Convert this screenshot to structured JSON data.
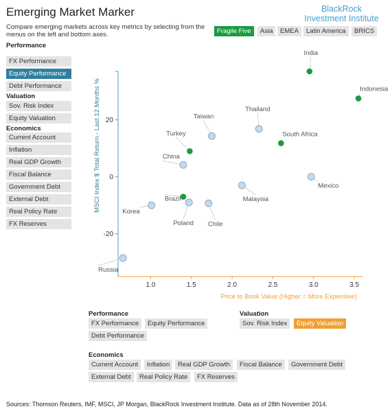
{
  "header": {
    "title": "Emerging Market Marker",
    "subtitle": "Compare emerging markets across key metrics by selecting from the menus on the left and bottom axes.",
    "brand_line1": "BlackRock",
    "brand_line2": "Investment Institute"
  },
  "region_tabs": [
    {
      "label": "Fragile Five",
      "selected": true
    },
    {
      "label": "Asia",
      "selected": false
    },
    {
      "label": "EMEA",
      "selected": false
    },
    {
      "label": "Latin America",
      "selected": false
    },
    {
      "label": "BRICS",
      "selected": false
    }
  ],
  "left_menu": {
    "performance_title": "Performance",
    "performance": [
      "FX Performance",
      "Equity Performance",
      "Debt Performance"
    ],
    "valuation_title": "Valuation",
    "valuation": [
      "Sov. Risk Index",
      "Equity Valuation"
    ],
    "economics_title": "Economics",
    "economics": [
      "Current Account",
      "Inflation",
      "Real GDP Growth",
      "Fiscal Balance",
      "Government Debt",
      "External Debt",
      "Real Policy Rate",
      "FX Reserves"
    ],
    "selected": "Equity Performance"
  },
  "bottom_menu": {
    "performance_title": "Performance",
    "performance": [
      "FX Performance",
      "Equity Performance",
      "Debt Performance"
    ],
    "valuation_title": "Valuation",
    "valuation": [
      "Sov. Risk Index",
      "Equity Valuation"
    ],
    "economics_title": "Economics",
    "economics": [
      "Current Account",
      "Inflation",
      "Real GDP Growth",
      "Fiscal Balance",
      "Government Debt",
      "External Debt",
      "Real Policy Rate",
      "FX Reserves"
    ],
    "selected": "Equity Valuation"
  },
  "chart_data": {
    "type": "scatter",
    "xlabel": "Price to Book Value (Higher = More Expensive)",
    "ylabel": "MSCI Index $ Total Return - Last 12 Months %",
    "x_ticks": [
      1.0,
      1.5,
      2.0,
      2.5,
      3.0,
      3.5
    ],
    "y_ticks": [
      20,
      0,
      -20
    ],
    "xlim": [
      0.6,
      3.6
    ],
    "ylim": [
      -35,
      37
    ],
    "grid": false,
    "colors": {
      "highlight": "#1a9c3e",
      "other_fill": "#c5d9ec",
      "other_stroke": "#8fa9c4",
      "axis": "#4a9ec9",
      "xlabel": "#f0a030"
    },
    "points": [
      {
        "name": "India",
        "x": 2.95,
        "y": 37.0,
        "highlight": true
      },
      {
        "name": "Indonesia",
        "x": 3.55,
        "y": 27.5,
        "highlight": true
      },
      {
        "name": "Thailand",
        "x": 2.33,
        "y": 16.8,
        "highlight": false
      },
      {
        "name": "Taiwan",
        "x": 1.75,
        "y": 14.3,
        "highlight": false
      },
      {
        "name": "South Africa",
        "x": 2.6,
        "y": 11.8,
        "highlight": true
      },
      {
        "name": "Turkey",
        "x": 1.48,
        "y": 9.0,
        "highlight": true
      },
      {
        "name": "China",
        "x": 1.4,
        "y": 4.2,
        "highlight": false
      },
      {
        "name": "Mexico",
        "x": 2.97,
        "y": 0.0,
        "highlight": false
      },
      {
        "name": "Malaysia",
        "x": 2.12,
        "y": -3.0,
        "highlight": false
      },
      {
        "name": "Brazil",
        "x": 1.4,
        "y": -7.0,
        "highlight": true
      },
      {
        "name": "Korea",
        "x": 1.01,
        "y": -10.0,
        "highlight": false
      },
      {
        "name": "Poland",
        "x": 1.47,
        "y": -9.0,
        "highlight": false
      },
      {
        "name": "Chile",
        "x": 1.71,
        "y": -9.3,
        "highlight": false
      },
      {
        "name": "Russia",
        "x": 0.66,
        "y": -28.5,
        "highlight": false
      }
    ]
  },
  "footer": "Sources: Thomson Reuters, IMF, MSCI, JP Morgan, BlackRock Investment Institute. Data as of 28th November 2014."
}
